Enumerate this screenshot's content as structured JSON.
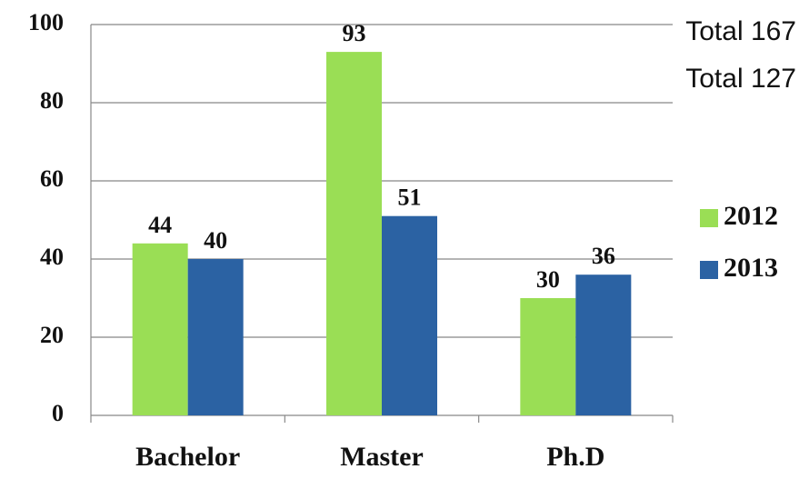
{
  "chart_data": {
    "type": "bar",
    "categories": [
      "Bachelor",
      "Master",
      "Ph.D"
    ],
    "series": [
      {
        "name": "2012",
        "color": "#9ade55",
        "values": [
          44,
          93,
          30
        ]
      },
      {
        "name": "2013",
        "color": "#2b62a3",
        "values": [
          40,
          51,
          36
        ]
      }
    ],
    "annotations": [
      "Total 167",
      "Total 127"
    ],
    "ylim": [
      0,
      100
    ],
    "yticks": [
      0,
      20,
      40,
      60,
      80,
      100
    ],
    "grid": true,
    "legend": "right"
  }
}
